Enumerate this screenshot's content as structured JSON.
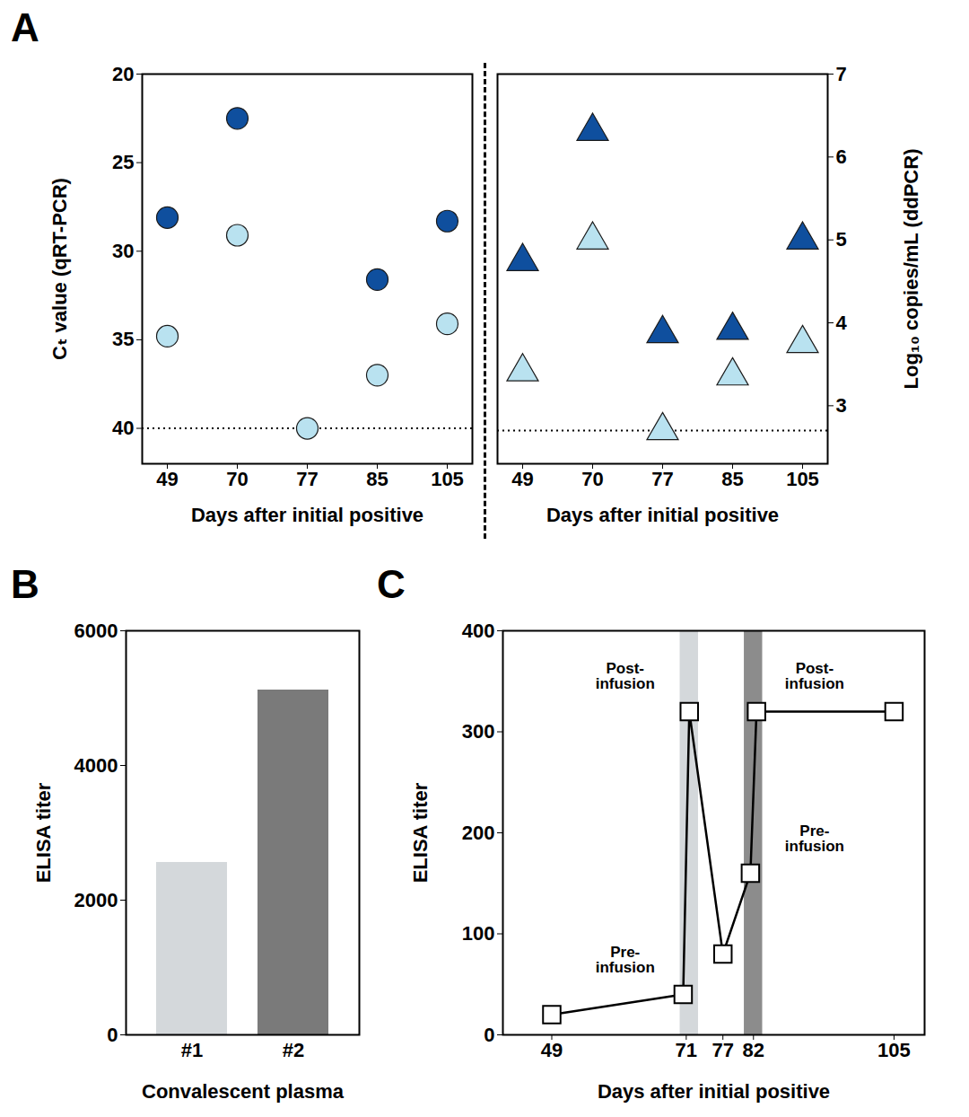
{
  "chart_data": [
    {
      "type": "scatter",
      "title": "A",
      "x_label": "Days after initial positive",
      "y_label": "Cₜ value (qRT-PCR)",
      "categories": [
        "49",
        "70",
        "77",
        "85",
        "105"
      ],
      "ylim": [
        42,
        20
      ],
      "yticks": [
        20,
        25,
        30,
        35,
        40
      ],
      "reference_line": 40,
      "series": [
        {
          "color": "#0f4f9e",
          "marker": "circle",
          "values": [
            28.1,
            22.5,
            null,
            31.6,
            28.3
          ]
        },
        {
          "color": "#b9e2f0",
          "marker": "circle",
          "values": [
            34.8,
            29.1,
            40,
            37,
            34.1
          ]
        }
      ]
    },
    {
      "type": "scatter",
      "x_label": "Days after initial positive",
      "y_label": "Log₁₀ copies/mL (ddPCR)",
      "categories": [
        "49",
        "70",
        "77",
        "85",
        "105"
      ],
      "ylim": [
        2.3,
        7
      ],
      "yticks": [
        3,
        4,
        5,
        6,
        7
      ],
      "reference_line": 2.7,
      "series": [
        {
          "color": "#0f4f9e",
          "marker": "triangle",
          "values": [
            4.74,
            6.31,
            3.87,
            3.91,
            5.0
          ]
        },
        {
          "color": "#b9e2f0",
          "marker": "triangle",
          "values": [
            3.41,
            5.0,
            2.7,
            3.36,
            3.75
          ]
        }
      ]
    },
    {
      "type": "bar",
      "title": "B",
      "x_label": "Convalescent plasma",
      "y_label": "ELISA titer",
      "categories": [
        "#1",
        "#2"
      ],
      "values": [
        2560,
        5120
      ],
      "colors": [
        "#d4d8db",
        "#7a7a7a"
      ],
      "ylim": [
        0,
        6000
      ],
      "yticks": [
        0,
        2000,
        4000,
        6000
      ]
    },
    {
      "type": "line",
      "title": "C",
      "x_label": "Days after initial positive",
      "y_label": "ELISA titer",
      "x": [
        49,
        70.5,
        71.5,
        77,
        81.5,
        82.5,
        105
      ],
      "values": [
        20,
        40,
        320,
        80,
        160,
        320,
        320
      ],
      "marker": "square",
      "color": "#000000",
      "xlim": [
        41,
        110
      ],
      "xticks": [
        49,
        71,
        77,
        82,
        105
      ],
      "ylim": [
        0,
        400
      ],
      "yticks": [
        0,
        100,
        200,
        300,
        400
      ],
      "shaded": [
        {
          "x1": 70,
          "x2": 73,
          "color": "#d4d8db"
        },
        {
          "x1": 80.5,
          "x2": 83.5,
          "color": "#8c8c8c"
        }
      ],
      "annotations": [
        {
          "text": "Post-\ninfusion",
          "x": 61,
          "y": 355
        },
        {
          "text": "Pre-\ninfusion",
          "x": 61,
          "y": 74
        },
        {
          "text": "Post-\ninfusion",
          "x": 92,
          "y": 355
        },
        {
          "text": "Pre-\ninfusion",
          "x": 92,
          "y": 194
        }
      ]
    }
  ]
}
